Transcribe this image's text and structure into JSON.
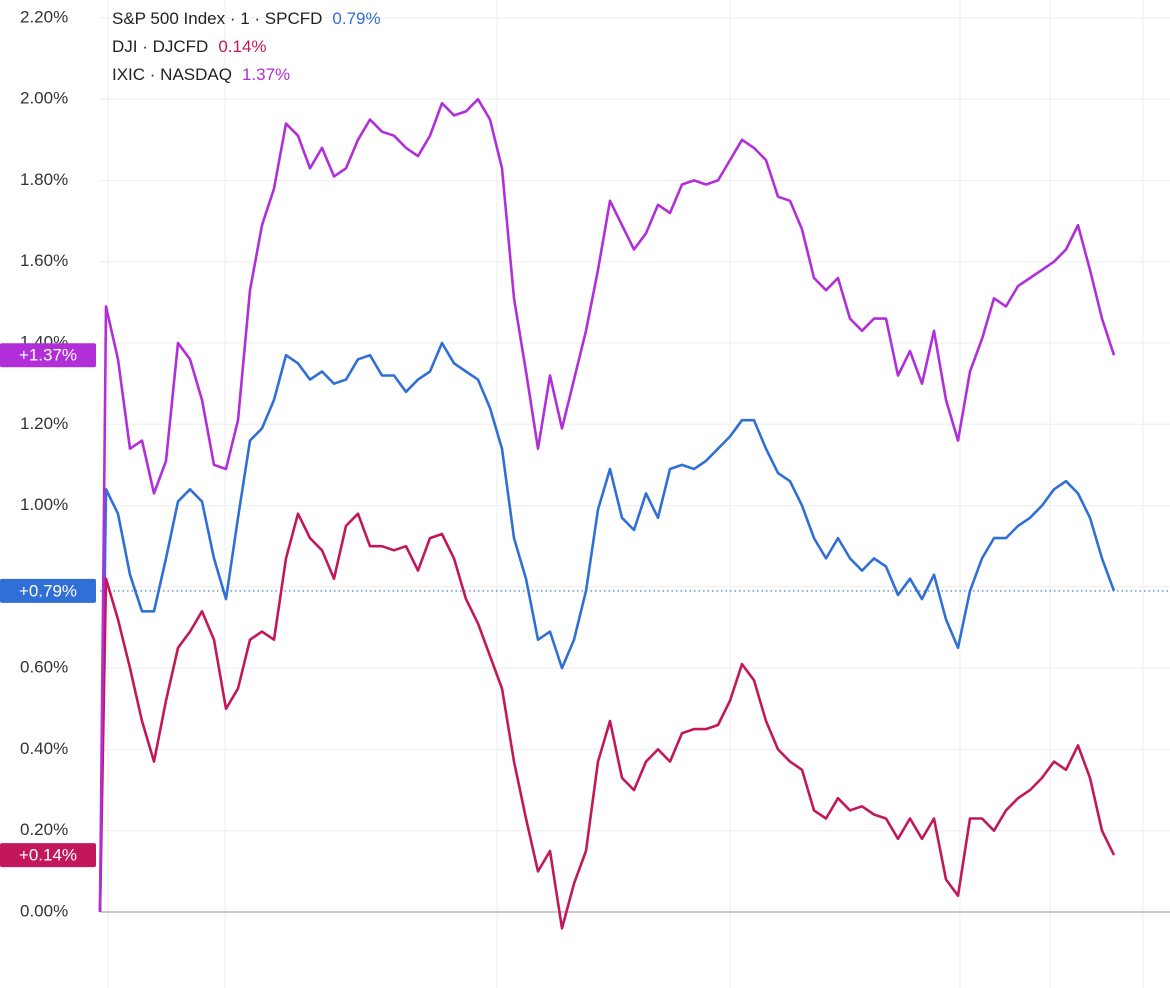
{
  "chart_data": {
    "type": "line",
    "x": [
      0,
      6,
      18,
      30,
      42,
      54,
      66,
      78,
      90,
      102,
      114,
      126,
      138,
      150,
      162,
      174,
      186,
      198,
      210,
      222,
      234,
      246,
      258,
      270,
      282,
      294,
      306,
      318,
      330,
      342,
      354,
      366,
      378,
      390,
      402,
      414,
      426,
      438,
      450,
      462,
      474,
      486,
      498,
      510,
      522,
      534,
      546,
      558,
      570,
      582,
      594,
      606,
      618,
      630,
      642,
      654,
      666,
      678,
      690,
      702,
      714,
      726,
      738,
      750,
      762,
      774,
      786,
      798,
      810,
      822,
      834,
      846,
      858,
      870,
      882,
      894,
      906,
      918,
      930,
      942,
      954,
      966,
      978,
      990,
      1002,
      1014
    ],
    "xlim": [
      0,
      1070
    ],
    "ylim": [
      -0.187,
      2.244
    ],
    "yticks": [
      {
        "value": 0,
        "label": "0.00%"
      },
      {
        "value": 0.2,
        "label": "0.20%"
      },
      {
        "value": 0.4,
        "label": "0.40%"
      },
      {
        "value": 0.6,
        "label": "0.60%"
      },
      {
        "value": 0.8,
        "label": "0.80%"
      },
      {
        "value": 1.0,
        "label": "1.00%"
      },
      {
        "value": 1.2,
        "label": "1.20%"
      },
      {
        "value": 1.4,
        "label": "1.40%"
      },
      {
        "value": 1.6,
        "label": "1.60%"
      },
      {
        "value": 1.8,
        "label": "1.80%"
      },
      {
        "value": 2.0,
        "label": "2.00%"
      },
      {
        "value": 2.2,
        "label": "2.20%"
      }
    ],
    "grid": true,
    "series": [
      {
        "name": "S&P 500 Index · 1 · SPCFD",
        "color": "#2f6fd6",
        "legend_value_label": "0.79%",
        "badge_label": "+0.79%",
        "reference_line": true,
        "values": [
          0,
          1.04,
          0.98,
          0.83,
          0.74,
          0.74,
          0.87,
          1.01,
          1.04,
          1.01,
          0.87,
          0.77,
          0.97,
          1.16,
          1.19,
          1.26,
          1.37,
          1.35,
          1.31,
          1.33,
          1.3,
          1.31,
          1.36,
          1.37,
          1.32,
          1.32,
          1.28,
          1.31,
          1.33,
          1.4,
          1.35,
          1.33,
          1.31,
          1.24,
          1.14,
          0.92,
          0.82,
          0.67,
          0.69,
          0.6,
          0.67,
          0.79,
          0.99,
          1.09,
          0.97,
          0.94,
          1.03,
          0.97,
          1.09,
          1.1,
          1.09,
          1.11,
          1.14,
          1.17,
          1.21,
          1.21,
          1.14,
          1.08,
          1.06,
          1.0,
          0.92,
          0.87,
          0.92,
          0.87,
          0.84,
          0.87,
          0.85,
          0.78,
          0.82,
          0.77,
          0.83,
          0.72,
          0.65,
          0.79,
          0.87,
          0.92,
          0.92,
          0.95,
          0.97,
          1.0,
          1.04,
          1.06,
          1.03,
          0.97,
          0.87,
          0.79
        ]
      },
      {
        "name": "DJI · DJCFD",
        "color": "#c2185b",
        "legend_value_label": "0.14%",
        "badge_label": "+0.14%",
        "values": [
          0,
          0.82,
          0.72,
          0.6,
          0.47,
          0.37,
          0.52,
          0.65,
          0.69,
          0.74,
          0.67,
          0.5,
          0.55,
          0.67,
          0.69,
          0.67,
          0.87,
          0.98,
          0.92,
          0.89,
          0.82,
          0.95,
          0.98,
          0.9,
          0.9,
          0.89,
          0.9,
          0.84,
          0.92,
          0.93,
          0.87,
          0.77,
          0.71,
          0.63,
          0.55,
          0.37,
          0.23,
          0.1,
          0.15,
          -0.04,
          0.07,
          0.15,
          0.37,
          0.47,
          0.33,
          0.3,
          0.37,
          0.4,
          0.37,
          0.44,
          0.45,
          0.45,
          0.46,
          0.52,
          0.61,
          0.57,
          0.47,
          0.4,
          0.37,
          0.35,
          0.25,
          0.23,
          0.28,
          0.25,
          0.26,
          0.24,
          0.23,
          0.18,
          0.23,
          0.18,
          0.23,
          0.08,
          0.04,
          0.23,
          0.23,
          0.2,
          0.25,
          0.28,
          0.3,
          0.33,
          0.37,
          0.35,
          0.41,
          0.33,
          0.2,
          0.14
        ]
      },
      {
        "name": "IXIC · NASDAQ",
        "color": "#b12fd9",
        "legend_value_label": "1.37%",
        "badge_label": "+1.37%",
        "values": [
          0,
          1.49,
          1.36,
          1.14,
          1.16,
          1.03,
          1.11,
          1.4,
          1.36,
          1.26,
          1.1,
          1.09,
          1.21,
          1.53,
          1.69,
          1.78,
          1.94,
          1.91,
          1.83,
          1.88,
          1.81,
          1.83,
          1.9,
          1.95,
          1.92,
          1.91,
          1.88,
          1.86,
          1.91,
          1.99,
          1.96,
          1.97,
          2.0,
          1.95,
          1.83,
          1.51,
          1.33,
          1.14,
          1.32,
          1.19,
          1.31,
          1.43,
          1.58,
          1.75,
          1.69,
          1.63,
          1.67,
          1.74,
          1.72,
          1.79,
          1.8,
          1.79,
          1.8,
          1.85,
          1.9,
          1.88,
          1.85,
          1.76,
          1.75,
          1.68,
          1.56,
          1.53,
          1.56,
          1.46,
          1.43,
          1.46,
          1.46,
          1.32,
          1.38,
          1.3,
          1.43,
          1.26,
          1.16,
          1.33,
          1.41,
          1.51,
          1.49,
          1.54,
          1.56,
          1.58,
          1.6,
          1.63,
          1.69,
          1.58,
          1.46,
          1.37
        ]
      }
    ]
  }
}
